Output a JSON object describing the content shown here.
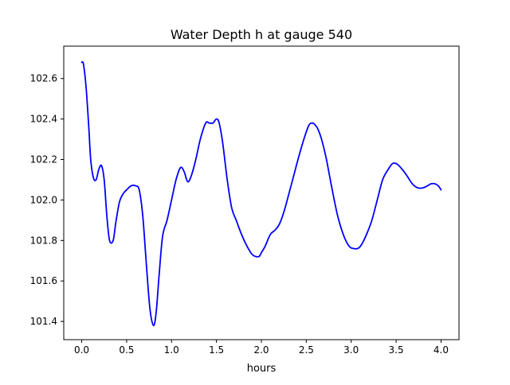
{
  "chart_data": {
    "type": "line",
    "title": "Water Depth h at gauge 540",
    "xlabel": "hours",
    "ylabel": "",
    "xlim": [
      -0.2,
      4.2
    ],
    "ylim": [
      101.31,
      102.76
    ],
    "xticks": [
      0.0,
      0.5,
      1.0,
      1.5,
      2.0,
      2.5,
      3.0,
      3.5,
      4.0
    ],
    "xtick_labels": [
      "0.0",
      "0.5",
      "1.0",
      "1.5",
      "2.0",
      "2.5",
      "3.0",
      "3.5",
      "4.0"
    ],
    "yticks": [
      101.4,
      101.6,
      101.8,
      102.0,
      102.2,
      102.4,
      102.6
    ],
    "ytick_labels": [
      "101.4",
      "101.6",
      "101.8",
      "102.0",
      "102.2",
      "102.4",
      "102.6"
    ],
    "grid": false,
    "series": [
      {
        "color": "#0000ff",
        "x": [
          0.0,
          0.02,
          0.05,
          0.08,
          0.1,
          0.13,
          0.16,
          0.19,
          0.22,
          0.25,
          0.28,
          0.31,
          0.35,
          0.38,
          0.42,
          0.46,
          0.5,
          0.55,
          0.6,
          0.64,
          0.68,
          0.72,
          0.76,
          0.8,
          0.83,
          0.86,
          0.9,
          0.95,
          1.0,
          1.05,
          1.1,
          1.14,
          1.18,
          1.22,
          1.27,
          1.32,
          1.38,
          1.42,
          1.46,
          1.5,
          1.53,
          1.57,
          1.62,
          1.67,
          1.72,
          1.77,
          1.83,
          1.9,
          1.97,
          2.0,
          2.04,
          2.1,
          2.15,
          2.2,
          2.25,
          2.3,
          2.36,
          2.42,
          2.48,
          2.53,
          2.57,
          2.6,
          2.63,
          2.67,
          2.72,
          2.78,
          2.85,
          2.92,
          2.98,
          3.03,
          3.07,
          3.1,
          3.14,
          3.18,
          3.23,
          3.29,
          3.35,
          3.41,
          3.46,
          3.5,
          3.53,
          3.57,
          3.62,
          3.68,
          3.74,
          3.8,
          3.85,
          3.89,
          3.93,
          3.97,
          4.0
        ],
        "y": [
          102.68,
          102.67,
          102.55,
          102.35,
          102.2,
          102.11,
          102.1,
          102.15,
          102.17,
          102.1,
          101.92,
          101.8,
          101.8,
          101.89,
          101.99,
          102.03,
          102.05,
          102.07,
          102.07,
          102.05,
          101.92,
          101.68,
          101.46,
          101.38,
          101.45,
          101.62,
          101.82,
          101.9,
          102.0,
          102.1,
          102.16,
          102.14,
          102.09,
          102.12,
          102.2,
          102.3,
          102.38,
          102.38,
          102.38,
          102.4,
          102.38,
          102.28,
          102.1,
          101.96,
          101.9,
          101.84,
          101.78,
          101.73,
          101.72,
          101.74,
          101.77,
          101.83,
          101.85,
          101.88,
          101.94,
          102.02,
          102.12,
          102.22,
          102.31,
          102.37,
          102.38,
          102.37,
          102.35,
          102.3,
          102.21,
          102.07,
          101.92,
          101.82,
          101.77,
          101.76,
          101.76,
          101.77,
          101.8,
          101.84,
          101.9,
          102.0,
          102.1,
          102.15,
          102.18,
          102.18,
          102.17,
          102.15,
          102.12,
          102.08,
          102.06,
          102.06,
          102.07,
          102.08,
          102.08,
          102.07,
          102.05
        ]
      }
    ]
  }
}
